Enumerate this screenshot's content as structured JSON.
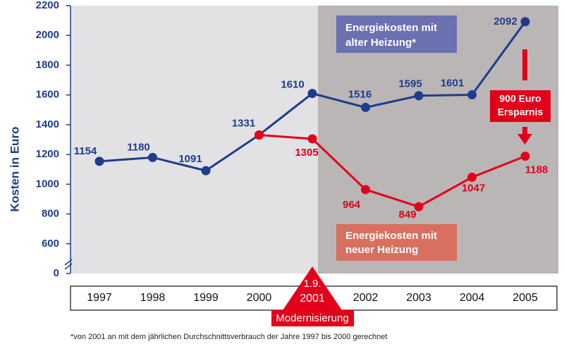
{
  "chart_data": {
    "type": "line",
    "y_label": "Kosten in Euro",
    "categories": [
      "1997",
      "1998",
      "1999",
      "2000",
      "2001",
      "2002",
      "2003",
      "2004",
      "2005"
    ],
    "series": [
      {
        "name": "Energiekosten mit alter Heizung*",
        "color": "#1f3c8c",
        "values": [
          1154,
          1180,
          1091,
          1331,
          1610,
          1516,
          1595,
          1601,
          2092
        ]
      },
      {
        "name": "Energiekosten mit neuer Heizung",
        "color": "#e3001b",
        "values": [
          null,
          null,
          null,
          1331,
          1305,
          964,
          849,
          1047,
          1188
        ]
      }
    ],
    "ylim": [
      0,
      2200
    ],
    "yticks": [
      0,
      600,
      800,
      1000,
      1200,
      1400,
      1600,
      1800,
      2000,
      2200
    ],
    "axis_break": [
      0,
      600
    ],
    "annotations": [
      [
        "Energiekosten mit",
        "alter Heizung*"
      ],
      [
        "Energiekosten mit",
        "neuer Heizung"
      ],
      [
        "900 Euro",
        "Ersparnis"
      ]
    ],
    "event": {
      "date": "1.9.",
      "label": "Modernisierung"
    },
    "footnote": "*von 2001 an mit dem jährlichen Durchschnittsverbrauch der Jahre 1997 bis 2000 gerechnet"
  }
}
